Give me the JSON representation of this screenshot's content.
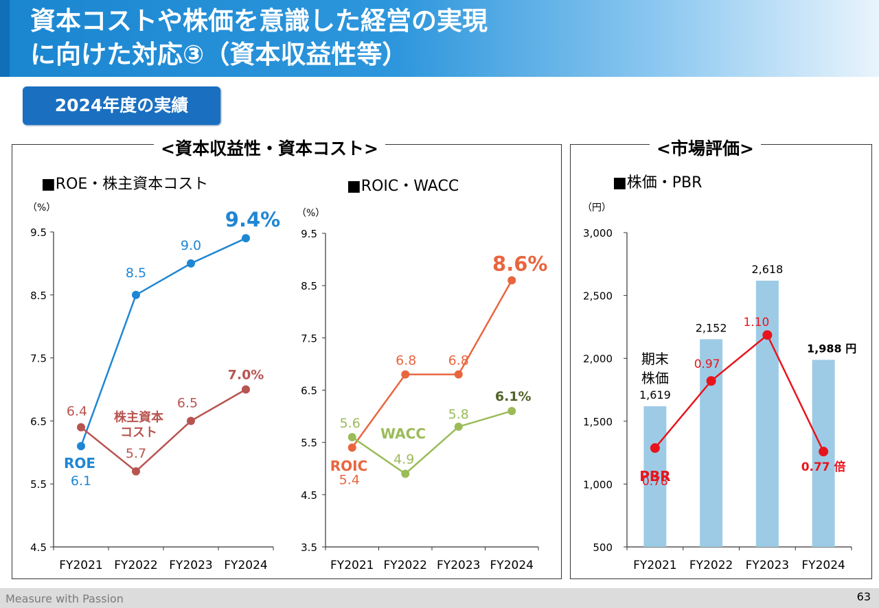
{
  "title": {
    "line1": "資本コストや株価を意識した経営の実現",
    "line2": "に向けた対応③（資本収益性等）"
  },
  "badge": "2024年度の実績",
  "panel_left_title": "<資本収益性・資本コスト>",
  "panel_right_title": "<市場評価>",
  "footer": {
    "text": "Measure with Passion",
    "page": "63"
  },
  "chart_data": [
    {
      "type": "line",
      "heading": "■ROE・株主資本コスト",
      "unit": "（%）",
      "categories": [
        "FY2021",
        "FY2022",
        "FY2023",
        "FY2024"
      ],
      "ylim": [
        4.5,
        9.5
      ],
      "yticks": [
        "4.5",
        "5.5",
        "6.5",
        "7.5",
        "8.5",
        "9.5"
      ],
      "series": [
        {
          "name": "ROE",
          "color": "#1f86d3",
          "values": [
            6.1,
            8.5,
            9.0,
            9.4
          ],
          "labels": [
            "6.1",
            "8.5",
            "9.0",
            "9.4%"
          ]
        },
        {
          "name": "株主資本コスト",
          "color": "#b85450",
          "values": [
            6.4,
            5.7,
            6.5,
            7.0
          ],
          "labels": [
            "6.4",
            "5.7",
            "6.5",
            "7.0%"
          ]
        }
      ]
    },
    {
      "type": "line",
      "heading": "■ROIC・WACC",
      "unit": "（%）",
      "categories": [
        "FY2021",
        "FY2022",
        "FY2023",
        "FY2024"
      ],
      "ylim": [
        3.5,
        9.5
      ],
      "yticks": [
        "3.5",
        "4.5",
        "5.5",
        "6.5",
        "7.5",
        "8.5",
        "9.5"
      ],
      "series": [
        {
          "name": "ROIC",
          "color": "#e8663f",
          "values": [
            5.4,
            6.8,
            6.8,
            8.6
          ],
          "labels": [
            "5.4",
            "6.8",
            "6.8",
            "8.6%"
          ]
        },
        {
          "name": "WACC",
          "color": "#9bbb59",
          "values": [
            5.6,
            4.9,
            5.8,
            6.1
          ],
          "labels": [
            "5.6",
            "4.9",
            "5.8",
            "6.1%"
          ]
        }
      ]
    },
    {
      "type": "bar+line",
      "heading": "■株価・PBR",
      "unit": "（円）",
      "categories": [
        "FY2021",
        "FY2022",
        "FY2023",
        "FY2024"
      ],
      "ylim": [
        500,
        3000
      ],
      "yticks": [
        "500",
        "1,000",
        "1,500",
        "2,000",
        "2,500",
        "3,000"
      ],
      "bars": {
        "name": "期末株価",
        "color": "#9dcbe6",
        "values": [
          1619,
          2152,
          2618,
          1988
        ],
        "labels": [
          "1,619",
          "2,152",
          "2,618",
          "1,988 円"
        ]
      },
      "line": {
        "name": "PBR",
        "color": "#e8141c",
        "values": [
          0.78,
          0.97,
          1.1,
          0.77
        ],
        "labels": [
          "0.78",
          "0.97",
          "1.10",
          "0.77 倍"
        ]
      }
    }
  ]
}
